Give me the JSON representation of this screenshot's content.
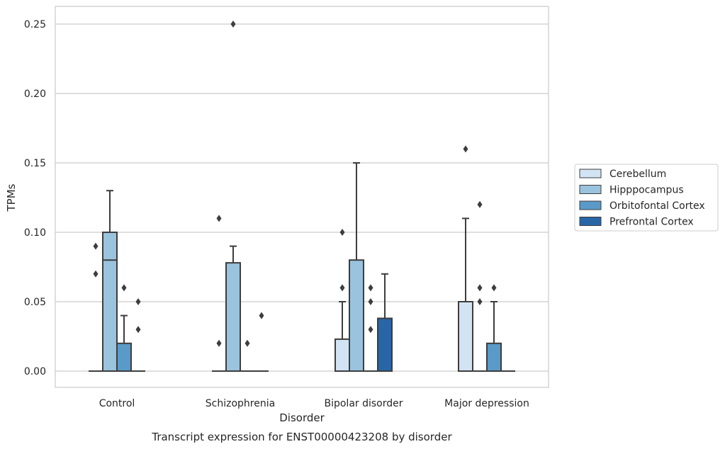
{
  "chart_data": {
    "type": "box",
    "title": "Transcript expression for ENST00000423208 by disorder",
    "xlabel": "Disorder",
    "ylabel": "TPMs",
    "ylim": [
      -0.012,
      0.263
    ],
    "yticks": [
      0.0,
      0.05,
      0.1,
      0.15,
      0.2,
      0.25
    ],
    "ytick_labels": [
      "0.00",
      "0.05",
      "0.10",
      "0.15",
      "0.20",
      "0.25"
    ],
    "grid": "horizontal",
    "legend_position": "right",
    "categories": [
      "Control",
      "Schizophrenia",
      "Bipolar disorder",
      "Major depression"
    ],
    "series": [
      {
        "name": "Cerebellum",
        "color": "#d2e3f3",
        "boxes": [
          {
            "q1": 0,
            "median": 0,
            "q3": 0,
            "whislo": 0,
            "whishi": 0,
            "fliers": [
              0.07,
              0.09
            ]
          },
          {
            "q1": 0,
            "median": 0,
            "q3": 0,
            "whislo": 0,
            "whishi": 0,
            "fliers": [
              0.02,
              0.11
            ]
          },
          {
            "q1": 0,
            "median": 0,
            "q3": 0.023,
            "whislo": 0,
            "whishi": 0.05,
            "fliers": [
              0.06,
              0.1
            ]
          },
          {
            "q1": 0,
            "median": 0,
            "q3": 0.05,
            "whislo": 0,
            "whishi": 0.11,
            "fliers": [
              0.16
            ]
          }
        ]
      },
      {
        "name": "Hipppocampus",
        "color": "#9ac3dd",
        "boxes": [
          {
            "q1": 0,
            "median": 0.08,
            "q3": 0.1,
            "whislo": 0,
            "whishi": 0.13,
            "fliers": []
          },
          {
            "q1": 0,
            "median": 0,
            "q3": 0.078,
            "whislo": 0,
            "whishi": 0.09,
            "fliers": [
              0.25
            ]
          },
          {
            "q1": 0,
            "median": 0,
            "q3": 0.08,
            "whislo": 0,
            "whishi": 0.15,
            "fliers": []
          },
          {
            "q1": 0,
            "median": 0,
            "q3": 0,
            "whislo": 0,
            "whishi": 0,
            "fliers": [
              0.05,
              0.06,
              0.12
            ]
          }
        ]
      },
      {
        "name": "Orbitofontal Cortex",
        "color": "#5a9ac8",
        "boxes": [
          {
            "q1": 0,
            "median": 0,
            "q3": 0.02,
            "whislo": 0,
            "whishi": 0.04,
            "fliers": [
              0.06
            ]
          },
          {
            "q1": 0,
            "median": 0,
            "q3": 0,
            "whislo": 0,
            "whishi": 0,
            "fliers": [
              0.02
            ]
          },
          {
            "q1": 0,
            "median": 0,
            "q3": 0,
            "whislo": 0,
            "whishi": 0,
            "fliers": [
              0.03,
              0.05,
              0.06
            ]
          },
          {
            "q1": 0,
            "median": 0,
            "q3": 0.02,
            "whislo": 0,
            "whishi": 0.05,
            "fliers": [
              0.06
            ]
          }
        ]
      },
      {
        "name": "Prefrontal Cortex",
        "color": "#2866a8",
        "boxes": [
          {
            "q1": 0,
            "median": 0,
            "q3": 0,
            "whislo": 0,
            "whishi": 0,
            "fliers": [
              0.03,
              0.05
            ]
          },
          {
            "q1": 0,
            "median": 0,
            "q3": 0,
            "whislo": 0,
            "whishi": 0,
            "fliers": [
              0.04
            ]
          },
          {
            "q1": 0,
            "median": 0,
            "q3": 0.038,
            "whislo": 0,
            "whishi": 0.07,
            "fliers": []
          },
          {
            "q1": 0,
            "median": 0,
            "q3": 0,
            "whislo": 0,
            "whishi": 0,
            "fliers": []
          }
        ]
      }
    ]
  }
}
